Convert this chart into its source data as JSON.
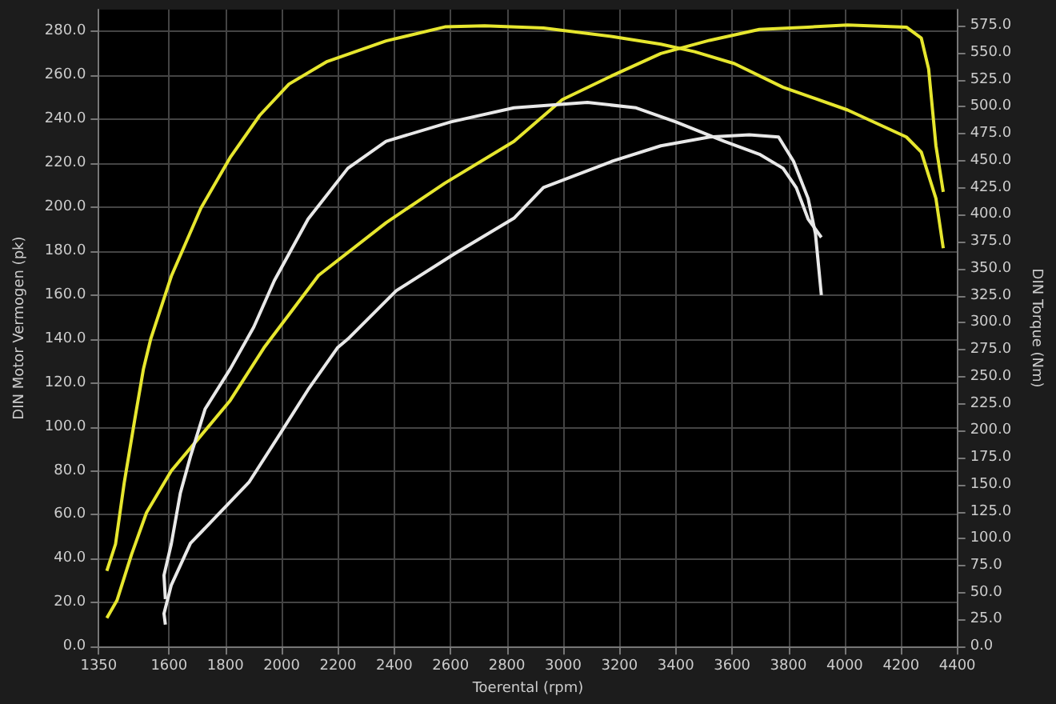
{
  "chart_data": {
    "type": "line",
    "xlabel": "Toerental (rpm)",
    "ylabel": "DIN Motor Vermogen (pk)",
    "y2label": "DIN Torque (Nm)",
    "xlim": [
      1350,
      4400
    ],
    "xticks": [
      1350,
      1600,
      1800,
      2000,
      2200,
      2400,
      2600,
      2800,
      3000,
      3200,
      3400,
      3600,
      3800,
      4000,
      4200,
      4400
    ],
    "ylim": [
      0,
      290
    ],
    "yticks": [
      {
        "value": 0,
        "label": "0.0"
      },
      {
        "value": 20,
        "label": "20.0"
      },
      {
        "value": 40,
        "label": "40.0"
      },
      {
        "value": 60,
        "label": "60.0"
      },
      {
        "value": 80,
        "label": "80.0"
      },
      {
        "value": 100,
        "label": "100.0"
      },
      {
        "value": 120,
        "label": "120.0"
      },
      {
        "value": 140,
        "label": "140.0"
      },
      {
        "value": 160,
        "label": "160.0"
      },
      {
        "value": 180,
        "label": "180.0"
      },
      {
        "value": 200,
        "label": "200.0"
      },
      {
        "value": 220,
        "label": "220.0"
      },
      {
        "value": 240,
        "label": "240.0"
      },
      {
        "value": 260,
        "label": "260.0"
      },
      {
        "value": 280,
        "label": "280.0"
      }
    ],
    "y2lim": [
      0,
      590
    ],
    "y2ticks": [
      {
        "value": 0,
        "label": "0.0"
      },
      {
        "value": 25,
        "label": "25.0"
      },
      {
        "value": 50,
        "label": "50.0"
      },
      {
        "value": 75,
        "label": "75.0"
      },
      {
        "value": 100,
        "label": "100.0"
      },
      {
        "value": 125,
        "label": "125.0"
      },
      {
        "value": 150,
        "label": "150.0"
      },
      {
        "value": 175,
        "label": "175.0"
      },
      {
        "value": 200,
        "label": "200.0"
      },
      {
        "value": 225,
        "label": "225.0"
      },
      {
        "value": 250,
        "label": "250.0"
      },
      {
        "value": 275,
        "label": "275.0"
      },
      {
        "value": 300,
        "label": "300.0"
      },
      {
        "value": 325,
        "label": "325.0"
      },
      {
        "value": 350,
        "label": "350.0"
      },
      {
        "value": 375,
        "label": "375.0"
      },
      {
        "value": 400,
        "label": "400.0"
      },
      {
        "value": 425,
        "label": "425.0"
      },
      {
        "value": 450,
        "label": "450.0"
      },
      {
        "value": 475,
        "label": "475.0"
      },
      {
        "value": 500,
        "label": "500.0"
      },
      {
        "value": 525,
        "label": "525.0"
      },
      {
        "value": 550,
        "label": "550.0"
      },
      {
        "value": 575,
        "label": "575.0"
      }
    ],
    "grid": true,
    "marker": "none",
    "series": [
      {
        "color": "#e6e62e",
        "axis": "y2",
        "x": [
          1379,
          1410,
          1441,
          1478,
          1509,
          1535,
          1608,
          1713,
          1817,
          1922,
          2026,
          2162,
          2371,
          2580,
          2721,
          2930,
          3175,
          3347,
          3467,
          3608,
          3781,
          4010,
          4219,
          4272,
          4324,
          4350
        ],
        "values": [
          70,
          95,
          152,
          210,
          257,
          285,
          343,
          406,
          453,
          492,
          521,
          542,
          561,
          574,
          575,
          573,
          565,
          558,
          551,
          540,
          518,
          497,
          472,
          458,
          415,
          369
        ]
      },
      {
        "color": "#e6e62e",
        "x": [
          1379,
          1415,
          1467,
          1520,
          1608,
          1713,
          1817,
          1937,
          2131,
          2371,
          2580,
          2825,
          2997,
          3175,
          3347,
          3520,
          3697,
          3869,
          4010,
          4219,
          4272,
          4298,
          4324,
          4350
        ],
        "values": [
          13,
          21,
          42,
          61,
          80,
          96,
          112,
          136,
          169,
          193,
          211,
          230,
          249,
          260,
          270,
          276,
          281,
          282,
          283,
          282,
          277,
          263,
          228,
          207
        ]
      },
      {
        "color": "#e8e8e8",
        "axis": "y2",
        "x": [
          1587,
          1582,
          1608,
          1640,
          1676,
          1728,
          1817,
          1901,
          1974,
          2094,
          2235,
          2371,
          2601,
          2825,
          3086,
          3259,
          3400,
          3572,
          3697,
          3781,
          3828,
          3870,
          3917
        ],
        "values": [
          44,
          66,
          95,
          142,
          176,
          220,
          257,
          296,
          339,
          396,
          443,
          468,
          486,
          499,
          504,
          499,
          486,
          468,
          456,
          443,
          425,
          396,
          379
        ]
      },
      {
        "color": "#e8e8e8",
        "x": [
          1587,
          1582,
          1608,
          1676,
          1781,
          1885,
          1990,
          2094,
          2198,
          2235,
          2407,
          2616,
          2825,
          2930,
          3175,
          3347,
          3520,
          3661,
          3765,
          3818,
          3870,
          3896,
          3917
        ],
        "values": [
          10,
          15,
          28,
          47,
          61,
          75,
          96,
          117,
          136,
          140,
          162,
          179,
          195,
          209,
          221,
          228,
          232,
          233,
          232,
          221,
          204,
          188,
          160
        ]
      }
    ]
  }
}
